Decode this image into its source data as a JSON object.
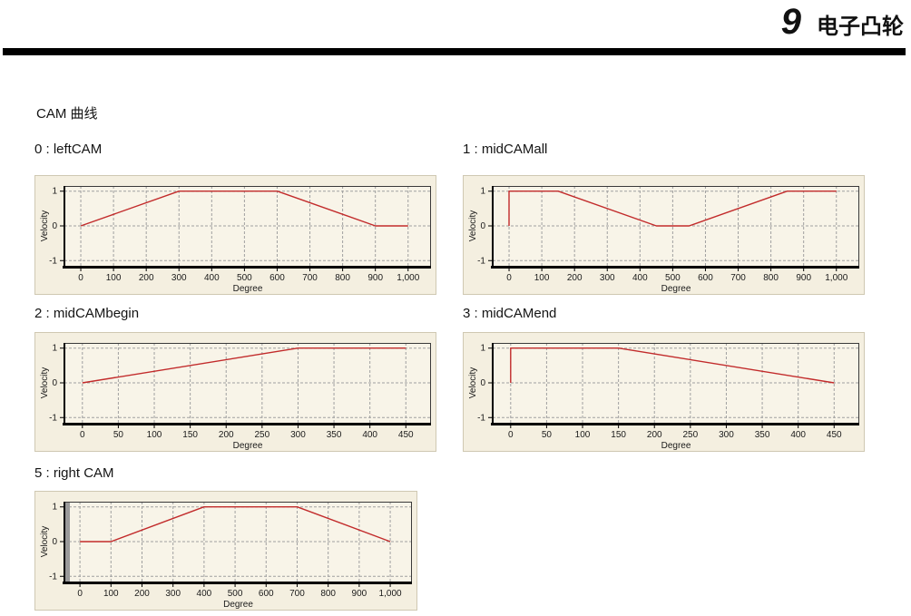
{
  "page": {
    "chapter_number": "9",
    "chapter_title": "电子凸轮",
    "section_title": "CAM 曲线"
  },
  "colors": {
    "panel_bg": "#f4efe0",
    "plot_bg": "#f8f4e8",
    "grid": "#a0a0a0",
    "axis": "#000000",
    "curve": "#c22b2b"
  },
  "chart_data": [
    {
      "type": "line",
      "name": "leftCAM",
      "title": "0 : leftCAM",
      "xlabel": "Degree",
      "ylabel": "Velocity",
      "xlim": [
        0,
        1000
      ],
      "ylim": [
        -1,
        1
      ],
      "xticks": [
        0,
        100,
        200,
        300,
        400,
        500,
        600,
        700,
        800,
        900,
        1000
      ],
      "xtick_labels": [
        "0",
        "100",
        "200",
        "300",
        "400",
        "500",
        "600",
        "700",
        "800",
        "900",
        "1,000"
      ],
      "yticks": [
        1,
        0,
        -1
      ],
      "ytick_labels": [
        "1",
        "0",
        "-1"
      ],
      "grid": true,
      "legend": false,
      "line_color": "#c22b2b",
      "points": [
        [
          0,
          0
        ],
        [
          300,
          1
        ],
        [
          600,
          1
        ],
        [
          900,
          0
        ],
        [
          1000,
          0
        ]
      ]
    },
    {
      "type": "line",
      "name": "midCAMall",
      "title": "1 : midCAMall",
      "xlabel": "Degree",
      "ylabel": "Velocity",
      "xlim": [
        0,
        1000
      ],
      "ylim": [
        -1,
        1
      ],
      "xticks": [
        0,
        100,
        200,
        300,
        400,
        500,
        600,
        700,
        800,
        900,
        1000
      ],
      "xtick_labels": [
        "0",
        "100",
        "200",
        "300",
        "400",
        "500",
        "600",
        "700",
        "800",
        "900",
        "1,000"
      ],
      "yticks": [
        1,
        0,
        -1
      ],
      "ytick_labels": [
        "1",
        "0",
        "-1"
      ],
      "grid": true,
      "legend": false,
      "line_color": "#c22b2b",
      "points": [
        [
          0,
          0
        ],
        [
          0,
          1
        ],
        [
          150,
          1
        ],
        [
          450,
          0
        ],
        [
          550,
          0
        ],
        [
          850,
          1
        ],
        [
          1000,
          1
        ]
      ]
    },
    {
      "type": "line",
      "name": "midCAMbegin",
      "title": "2 : midCAMbegin",
      "xlabel": "Degree",
      "ylabel": "Velocity",
      "xlim": [
        0,
        450
      ],
      "ylim": [
        -1,
        1
      ],
      "xticks": [
        0,
        50,
        100,
        150,
        200,
        250,
        300,
        350,
        400,
        450
      ],
      "xtick_labels": [
        "0",
        "50",
        "100",
        "150",
        "200",
        "250",
        "300",
        "350",
        "400",
        "450"
      ],
      "yticks": [
        1,
        0,
        -1
      ],
      "ytick_labels": [
        "1",
        "0",
        "-1"
      ],
      "grid": true,
      "legend": false,
      "line_color": "#c22b2b",
      "points": [
        [
          0,
          0
        ],
        [
          300,
          1
        ],
        [
          450,
          1
        ]
      ]
    },
    {
      "type": "line",
      "name": "midCAMend",
      "title": "3 : midCAMend",
      "xlabel": "Degree",
      "ylabel": "Velocity",
      "xlim": [
        0,
        450
      ],
      "ylim": [
        -1,
        1
      ],
      "xticks": [
        0,
        50,
        100,
        150,
        200,
        250,
        300,
        350,
        400,
        450
      ],
      "xtick_labels": [
        "0",
        "50",
        "100",
        "150",
        "200",
        "250",
        "300",
        "350",
        "400",
        "450"
      ],
      "yticks": [
        1,
        0,
        -1
      ],
      "ytick_labels": [
        "1",
        "0",
        "-1"
      ],
      "grid": true,
      "legend": false,
      "line_color": "#c22b2b",
      "points": [
        [
          0,
          0
        ],
        [
          0,
          1
        ],
        [
          150,
          1
        ],
        [
          450,
          0
        ]
      ]
    },
    {
      "type": "line",
      "name": "rightCAM",
      "title": "5 : right CAM",
      "xlabel": "Degree",
      "ylabel": "Velocity",
      "xlim": [
        0,
        1000
      ],
      "ylim": [
        -1,
        1
      ],
      "xticks": [
        0,
        100,
        200,
        300,
        400,
        500,
        600,
        700,
        800,
        900,
        1000
      ],
      "xtick_labels": [
        "0",
        "100",
        "200",
        "300",
        "400",
        "500",
        "600",
        "700",
        "800",
        "900",
        "1,000"
      ],
      "yticks": [
        1,
        0,
        -1
      ],
      "ytick_labels": [
        "1",
        "0",
        "-1"
      ],
      "grid": true,
      "legend": false,
      "left_gray_strip": true,
      "line_color": "#c22b2b",
      "points": [
        [
          0,
          0
        ],
        [
          100,
          0
        ],
        [
          400,
          1
        ],
        [
          700,
          1
        ],
        [
          1000,
          0
        ]
      ]
    }
  ]
}
